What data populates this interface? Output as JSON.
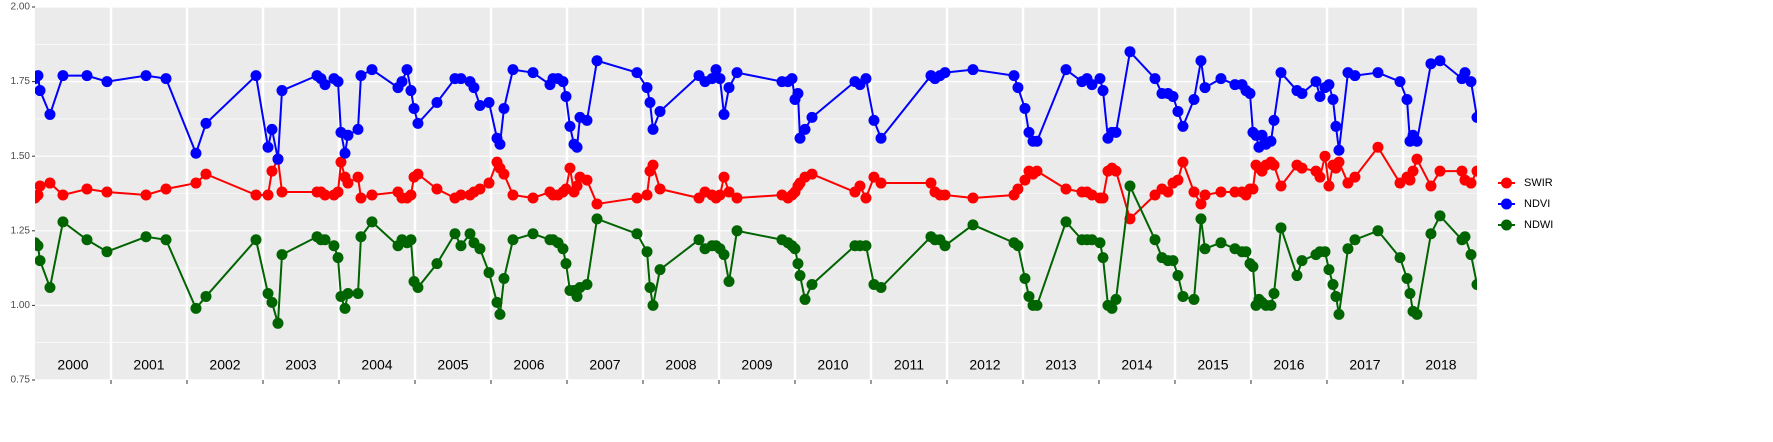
{
  "chart_data": {
    "type": "line",
    "x": [
      2000.0,
      2000.039,
      2000.066,
      2000.197,
      2000.368,
      2000.684,
      2000.947,
      2001.461,
      2001.724,
      2002.118,
      2002.25,
      2002.908,
      2003.066,
      2003.118,
      2003.197,
      2003.25,
      2003.711,
      2003.763,
      2003.816,
      2003.934,
      2003.987,
      2004.026,
      2004.079,
      2004.118,
      2004.25,
      2004.289,
      2004.434,
      2004.776,
      2004.829,
      2004.895,
      2004.947,
      2004.987,
      2005.039,
      2005.289,
      2005.526,
      2005.605,
      2005.724,
      2005.776,
      2005.855,
      2005.974,
      2006.079,
      2006.118,
      2006.171,
      2006.289,
      2006.553,
      2006.776,
      2006.816,
      2006.882,
      2006.947,
      2006.987,
      2007.039,
      2007.092,
      2007.132,
      2007.171,
      2007.263,
      2007.395,
      2007.921,
      2008.053,
      2008.092,
      2008.132,
      2008.224,
      2008.737,
      2008.816,
      2008.908,
      2008.961,
      2009.013,
      2009.066,
      2009.132,
      2009.237,
      2009.829,
      2009.908,
      2009.961,
      2010.0,
      2010.039,
      2010.066,
      2010.132,
      2010.224,
      2010.789,
      2010.855,
      2010.934,
      2011.039,
      2011.132,
      2011.789,
      2011.842,
      2011.908,
      2011.974,
      2012.342,
      2012.882,
      2012.934,
      2013.026,
      2013.079,
      2013.132,
      2013.184,
      2013.566,
      2013.776,
      2013.842,
      2013.908,
      2014.013,
      2014.053,
      2014.118,
      2014.171,
      2014.224,
      2014.408,
      2014.737,
      2014.829,
      2014.908,
      2014.974,
      2015.039,
      2015.105,
      2015.25,
      2015.342,
      2015.395,
      2015.605,
      2015.789,
      2015.882,
      2015.934,
      2015.987,
      2016.026,
      2016.066,
      2016.105,
      2016.145,
      2016.197,
      2016.263,
      2016.303,
      2016.395,
      2016.605,
      2016.671,
      2016.855,
      2016.908,
      2016.974,
      2017.026,
      2017.079,
      2017.118,
      2017.158,
      2017.276,
      2017.368,
      2017.671,
      2017.961,
      2018.053,
      2018.092,
      2018.132,
      2018.184,
      2018.368,
      2018.487,
      2018.776,
      2018.816,
      2018.895,
      2018.974
    ],
    "series": [
      {
        "name": "SWIR",
        "color": "#ff0000",
        "values": [
          1.36,
          1.37,
          1.4,
          1.41,
          1.37,
          1.39,
          1.38,
          1.37,
          1.39,
          1.41,
          1.44,
          1.37,
          1.37,
          1.45,
          1.49,
          1.38,
          1.38,
          1.38,
          1.37,
          1.37,
          1.38,
          1.48,
          1.43,
          1.41,
          1.43,
          1.36,
          1.37,
          1.38,
          1.36,
          1.36,
          1.37,
          1.43,
          1.44,
          1.39,
          1.36,
          1.37,
          1.37,
          1.38,
          1.39,
          1.41,
          1.48,
          1.46,
          1.44,
          1.37,
          1.36,
          1.38,
          1.37,
          1.37,
          1.38,
          1.39,
          1.46,
          1.38,
          1.4,
          1.43,
          1.42,
          1.34,
          1.36,
          1.37,
          1.45,
          1.47,
          1.39,
          1.36,
          1.38,
          1.37,
          1.36,
          1.37,
          1.43,
          1.38,
          1.36,
          1.37,
          1.36,
          1.37,
          1.38,
          1.4,
          1.41,
          1.43,
          1.44,
          1.38,
          1.4,
          1.36,
          1.43,
          1.41,
          1.41,
          1.38,
          1.37,
          1.37,
          1.36,
          1.37,
          1.39,
          1.42,
          1.45,
          1.44,
          1.45,
          1.39,
          1.38,
          1.38,
          1.37,
          1.36,
          1.36,
          1.45,
          1.46,
          1.45,
          1.29,
          1.37,
          1.39,
          1.38,
          1.41,
          1.42,
          1.48,
          1.38,
          1.34,
          1.37,
          1.38,
          1.38,
          1.38,
          1.37,
          1.39,
          1.39,
          1.47,
          1.46,
          1.45,
          1.47,
          1.48,
          1.47,
          1.4,
          1.47,
          1.46,
          1.45,
          1.43,
          1.5,
          1.4,
          1.47,
          1.46,
          1.48,
          1.41,
          1.43,
          1.53,
          1.41,
          1.43,
          1.42,
          1.45,
          1.49,
          1.4,
          1.45,
          1.45,
          1.42,
          1.41,
          1.45
        ]
      },
      {
        "name": "NDVI",
        "color": "#0000ff",
        "values": [
          1.76,
          1.77,
          1.72,
          1.64,
          1.77,
          1.77,
          1.75,
          1.77,
          1.76,
          1.51,
          1.61,
          1.77,
          1.53,
          1.59,
          1.49,
          1.72,
          1.77,
          1.76,
          1.74,
          1.76,
          1.75,
          1.58,
          1.51,
          1.57,
          1.59,
          1.77,
          1.79,
          1.73,
          1.75,
          1.79,
          1.72,
          1.66,
          1.61,
          1.68,
          1.76,
          1.76,
          1.75,
          1.73,
          1.67,
          1.68,
          1.56,
          1.54,
          1.66,
          1.79,
          1.78,
          1.74,
          1.76,
          1.76,
          1.75,
          1.7,
          1.6,
          1.54,
          1.53,
          1.63,
          1.62,
          1.82,
          1.78,
          1.73,
          1.68,
          1.59,
          1.65,
          1.77,
          1.75,
          1.76,
          1.79,
          1.76,
          1.64,
          1.73,
          1.78,
          1.75,
          1.75,
          1.76,
          1.69,
          1.71,
          1.56,
          1.59,
          1.63,
          1.75,
          1.74,
          1.76,
          1.62,
          1.56,
          1.77,
          1.76,
          1.77,
          1.78,
          1.79,
          1.77,
          1.73,
          1.66,
          1.58,
          1.55,
          1.55,
          1.79,
          1.75,
          1.76,
          1.74,
          1.76,
          1.72,
          1.56,
          1.58,
          1.58,
          1.85,
          1.76,
          1.71,
          1.71,
          1.7,
          1.65,
          1.6,
          1.69,
          1.82,
          1.73,
          1.76,
          1.74,
          1.74,
          1.72,
          1.71,
          1.58,
          1.57,
          1.53,
          1.57,
          1.54,
          1.55,
          1.62,
          1.78,
          1.72,
          1.71,
          1.75,
          1.7,
          1.73,
          1.74,
          1.69,
          1.6,
          1.52,
          1.78,
          1.77,
          1.78,
          1.75,
          1.69,
          1.55,
          1.57,
          1.55,
          1.81,
          1.82,
          1.76,
          1.78,
          1.75,
          1.63
        ]
      },
      {
        "name": "NDWI",
        "color": "#006400",
        "values": [
          1.21,
          1.2,
          1.15,
          1.06,
          1.28,
          1.22,
          1.18,
          1.23,
          1.22,
          0.99,
          1.03,
          1.22,
          1.04,
          1.01,
          0.94,
          1.17,
          1.23,
          1.22,
          1.22,
          1.2,
          1.16,
          1.03,
          0.99,
          1.04,
          1.04,
          1.23,
          1.28,
          1.2,
          1.22,
          1.21,
          1.22,
          1.08,
          1.06,
          1.14,
          1.24,
          1.2,
          1.24,
          1.21,
          1.19,
          1.11,
          1.01,
          0.97,
          1.09,
          1.22,
          1.24,
          1.22,
          1.22,
          1.21,
          1.19,
          1.14,
          1.05,
          1.05,
          1.03,
          1.06,
          1.07,
          1.29,
          1.24,
          1.18,
          1.06,
          1.0,
          1.12,
          1.22,
          1.19,
          1.2,
          1.2,
          1.19,
          1.17,
          1.08,
          1.25,
          1.22,
          1.21,
          1.2,
          1.19,
          1.14,
          1.1,
          1.02,
          1.07,
          1.2,
          1.2,
          1.2,
          1.07,
          1.06,
          1.23,
          1.22,
          1.22,
          1.2,
          1.27,
          1.21,
          1.2,
          1.09,
          1.03,
          1.0,
          1.0,
          1.28,
          1.22,
          1.22,
          1.22,
          1.21,
          1.16,
          1.0,
          0.99,
          1.02,
          1.4,
          1.22,
          1.16,
          1.15,
          1.15,
          1.1,
          1.03,
          1.02,
          1.29,
          1.19,
          1.21,
          1.19,
          1.18,
          1.18,
          1.14,
          1.13,
          1.0,
          1.02,
          1.01,
          1.0,
          1.0,
          1.04,
          1.26,
          1.1,
          1.15,
          1.17,
          1.18,
          1.18,
          1.12,
          1.07,
          1.03,
          0.97,
          1.19,
          1.22,
          1.25,
          1.16,
          1.09,
          1.04,
          0.98,
          0.97,
          1.24,
          1.3,
          1.22,
          1.23,
          1.17,
          1.07
        ]
      }
    ],
    "xlim": [
      2000,
      2018.974
    ],
    "xticks": [
      2001,
      2002,
      2003,
      2004,
      2005,
      2006,
      2007,
      2008,
      2009,
      2010,
      2011,
      2012,
      2013,
      2014,
      2015,
      2016,
      2017,
      2018
    ],
    "year_labels": [
      2000,
      2001,
      2002,
      2003,
      2004,
      2005,
      2006,
      2007,
      2008,
      2009,
      2010,
      2011,
      2012,
      2013,
      2014,
      2015,
      2016,
      2017,
      2018
    ],
    "ylim": [
      0.75,
      2.0
    ],
    "yticks": [
      {
        "value": 0.75,
        "label": "0.75"
      },
      {
        "value": 1.0,
        "label": "1.00"
      },
      {
        "value": 1.25,
        "label": "1.25"
      },
      {
        "value": 1.5,
        "label": "1.50"
      },
      {
        "value": 1.75,
        "label": "1.75"
      },
      {
        "value": 2.0,
        "label": "2.00"
      }
    ],
    "grid": true,
    "legend": "right"
  }
}
